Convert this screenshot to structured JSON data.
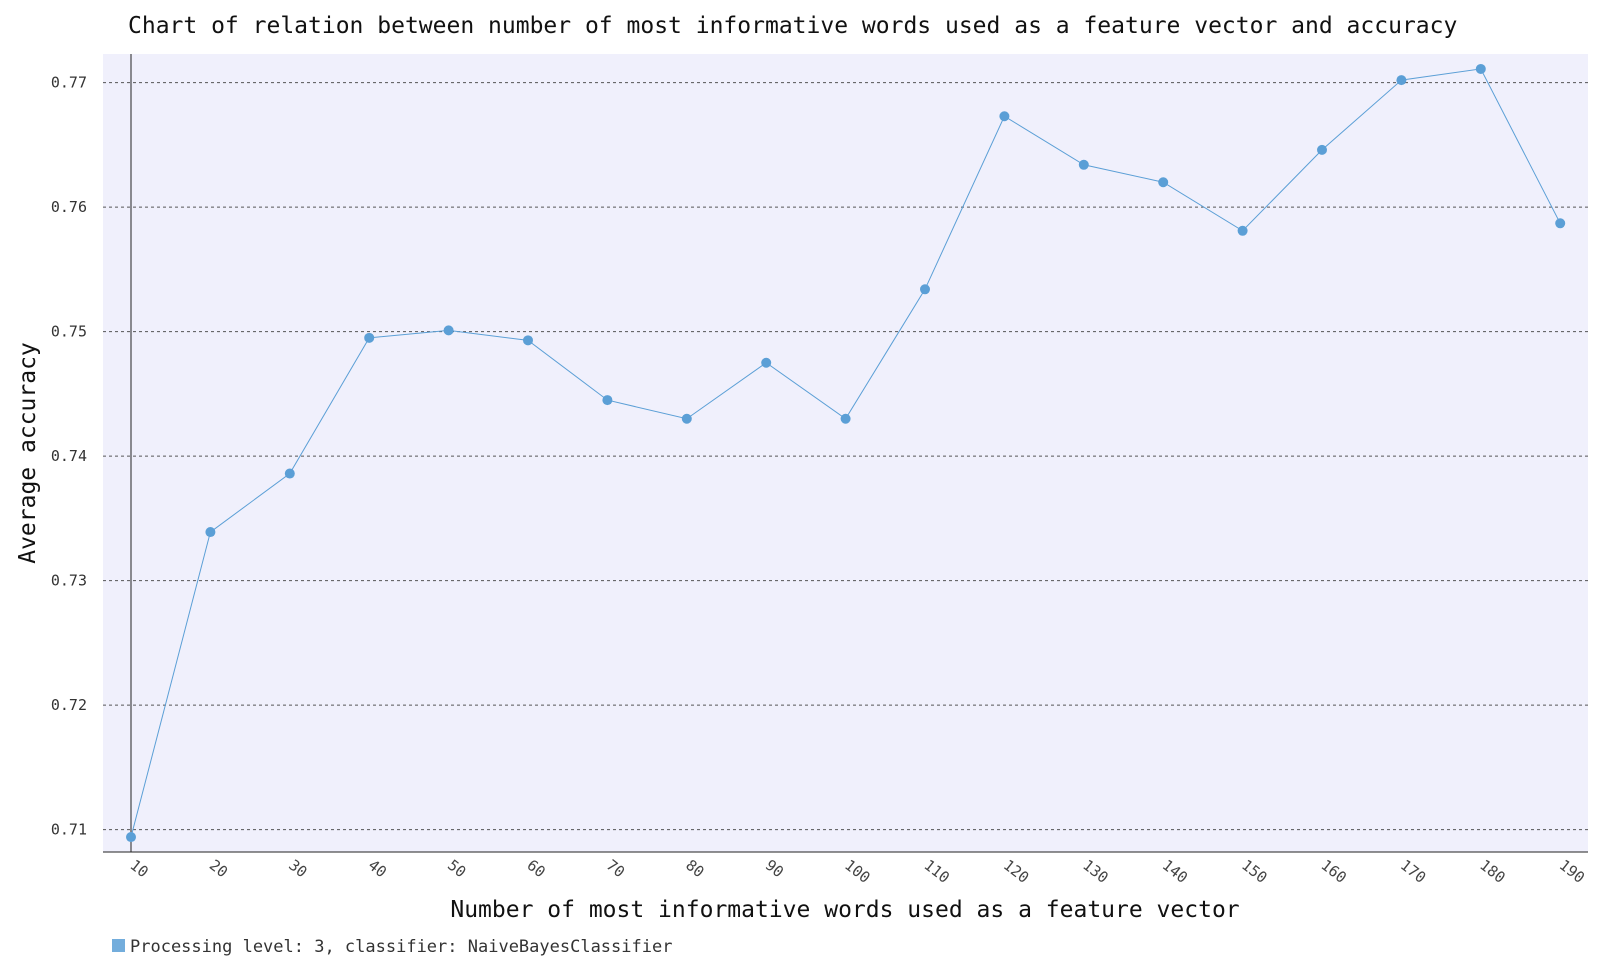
{
  "chart_data": {
    "type": "line",
    "title": "Chart of relation between number of most informative words used as a feature vector and accuracy",
    "xlabel": "Number of most informative words used as a feature vector",
    "ylabel": "Average accuracy",
    "x": [
      10,
      20,
      30,
      40,
      50,
      60,
      70,
      80,
      90,
      100,
      110,
      120,
      130,
      140,
      150,
      160,
      170,
      180,
      190
    ],
    "x_tick_labels": [
      "10",
      "20",
      "30",
      "40",
      "50",
      "60",
      "70",
      "80",
      "90",
      "100",
      "110",
      "120",
      "130",
      "140",
      "150",
      "160",
      "170",
      "180",
      "190"
    ],
    "series": [
      {
        "name": "Processing level: 3, classifier: NaiveBayesClassifier",
        "values": [
          0.7094,
          0.7339,
          0.7386,
          0.7495,
          0.7501,
          0.7493,
          0.7445,
          0.743,
          0.7475,
          0.743,
          0.7534,
          0.7673,
          0.7634,
          0.762,
          0.7581,
          0.7646,
          0.7702,
          0.7711,
          0.7587
        ],
        "color": "#5b9fd6"
      }
    ],
    "y_ticks": [
      0.71,
      0.72,
      0.73,
      0.74,
      0.75,
      0.76,
      0.77
    ],
    "y_tick_labels": [
      "0.71",
      "0.72",
      "0.73",
      "0.74",
      "0.75",
      "0.76",
      "0.77"
    ],
    "ylim": [
      0.7082,
      0.7723
    ],
    "grid": "horizontal dashed",
    "legend": "bottom-left",
    "background": "#f0f0fc"
  }
}
